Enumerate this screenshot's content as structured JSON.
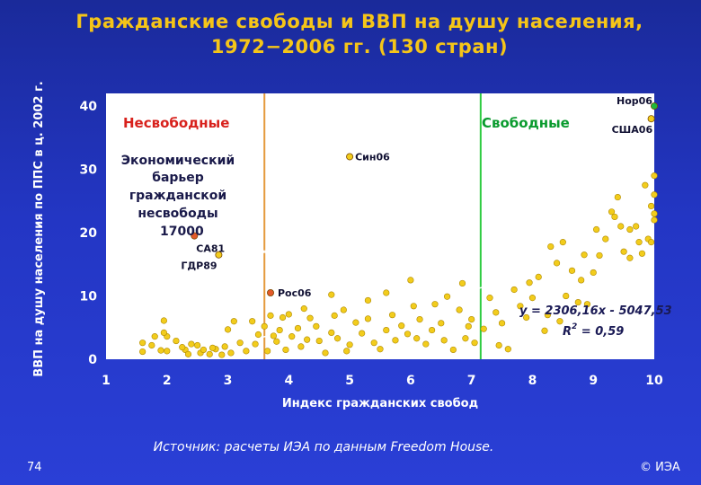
{
  "title_line1": "Гражданские свободы и ВВП на душу населения,",
  "title_line2": "1972−2006 гг. (130 стран)",
  "source": "Источник: расчеты ИЭА по данным Freedom House.",
  "slide_number": "74",
  "copyright": "© ИЭА",
  "colors": {
    "background": "#2336c4",
    "plot_background": "#ffffff",
    "point": "#f2cc1c",
    "unfree_line": "#e59a3c",
    "free_line": "#2ecc40",
    "title": "#f5c518"
  },
  "chart_data": {
    "type": "scatter",
    "title": "Гражданские свободы и ВВП на душу населения, 1972−2006 гг. (130 стран)",
    "xlabel": "Индекс гражданских свобод",
    "ylabel": "ВВП на душу населения по ППС в ц. 2002 г.",
    "xlim": [
      1,
      10
    ],
    "ylim": [
      0,
      42
    ],
    "x_ticks": [
      "1",
      "2",
      "3",
      "4",
      "5",
      "6",
      "7",
      "8",
      "9",
      "10"
    ],
    "y_ticks": [
      "0",
      "10",
      "20",
      "30",
      "40"
    ],
    "grid": false,
    "regions": {
      "unfree": "Несвободные",
      "free": "Свободные"
    },
    "barrier_text": [
      "Экономический",
      "барьер",
      "гражданской",
      "несвободы",
      "17000"
    ],
    "barrier_level": 17000,
    "barrier_label": "17000",
    "vertical_lines": {
      "unfree_x": 3.6,
      "free_x": 7.15
    },
    "trendline": {
      "equation": "y = 2306,16x - 5047,53",
      "r2_label": "R",
      "r2_sup": "2",
      "r2_value": " = 0,59",
      "x": [
        2.1,
        10
      ],
      "y": [
        0.3,
        17.5
      ]
    },
    "labeled_points": [
      {
        "label": "Нор06",
        "x": 10.0,
        "y": 40.0
      },
      {
        "label": "США06",
        "x": 9.95,
        "y": 38.0
      },
      {
        "label": "Син06",
        "x": 5.0,
        "y": 32.0
      },
      {
        "label": "СА81",
        "x": 2.45,
        "y": 19.5
      },
      {
        "label": "ГДР89",
        "x": 2.85,
        "y": 16.5
      },
      {
        "label": "Рос06",
        "x": 3.7,
        "y": 10.5
      }
    ],
    "points": [
      [
        1.6,
        1.2
      ],
      [
        1.6,
        2.6
      ],
      [
        1.8,
        3.6
      ],
      [
        1.9,
        1.4
      ],
      [
        1.95,
        6.1
      ],
      [
        2.0,
        1.3
      ],
      [
        2.0,
        3.6
      ],
      [
        2.15,
        2.9
      ],
      [
        2.3,
        1.5
      ],
      [
        2.35,
        0.8
      ],
      [
        2.4,
        2.4
      ],
      [
        2.5,
        2.2
      ],
      [
        2.55,
        1.0
      ],
      [
        2.7,
        0.8
      ],
      [
        2.8,
        1.6
      ],
      [
        2.9,
        0.7
      ],
      [
        2.95,
        2.0
      ],
      [
        3.0,
        4.7
      ],
      [
        3.1,
        6.0
      ],
      [
        3.2,
        2.6
      ],
      [
        3.3,
        1.3
      ],
      [
        3.45,
        2.4
      ],
      [
        3.5,
        3.9
      ],
      [
        3.6,
        5.2
      ],
      [
        3.65,
        1.3
      ],
      [
        3.7,
        6.9
      ],
      [
        3.75,
        3.7
      ],
      [
        3.8,
        2.8
      ],
      [
        3.85,
        4.6
      ],
      [
        3.9,
        6.6
      ],
      [
        3.95,
        1.5
      ],
      [
        4.0,
        7.1
      ],
      [
        4.05,
        3.6
      ],
      [
        4.15,
        4.9
      ],
      [
        4.2,
        2.0
      ],
      [
        4.3,
        3.1
      ],
      [
        4.35,
        6.5
      ],
      [
        4.45,
        5.2
      ],
      [
        4.5,
        2.9
      ],
      [
        4.6,
        1.0
      ],
      [
        4.7,
        4.2
      ],
      [
        4.75,
        6.9
      ],
      [
        4.8,
        3.3
      ],
      [
        4.95,
        1.3
      ],
      [
        5.0,
        2.3
      ],
      [
        5.1,
        5.8
      ],
      [
        5.2,
        4.1
      ],
      [
        5.3,
        6.4
      ],
      [
        5.4,
        2.6
      ],
      [
        5.5,
        1.6
      ],
      [
        5.6,
        4.6
      ],
      [
        5.7,
        7.0
      ],
      [
        5.75,
        3.0
      ],
      [
        5.85,
        5.3
      ],
      [
        5.95,
        4.0
      ],
      [
        6.05,
        8.4
      ],
      [
        6.1,
        3.3
      ],
      [
        6.15,
        6.3
      ],
      [
        6.25,
        2.4
      ],
      [
        6.35,
        4.6
      ],
      [
        6.4,
        8.7
      ],
      [
        6.5,
        5.7
      ],
      [
        6.55,
        3.0
      ],
      [
        6.6,
        9.9
      ],
      [
        6.7,
        1.5
      ],
      [
        6.8,
        7.8
      ],
      [
        6.9,
        3.3
      ],
      [
        6.95,
        5.2
      ],
      [
        7.0,
        6.3
      ],
      [
        7.05,
        2.6
      ],
      [
        7.2,
        4.8
      ],
      [
        7.3,
        9.7
      ],
      [
        7.4,
        7.4
      ],
      [
        7.5,
        5.7
      ],
      [
        7.6,
        1.6
      ],
      [
        7.7,
        11.0
      ],
      [
        7.8,
        8.4
      ],
      [
        7.9,
        6.6
      ],
      [
        8.0,
        9.7
      ],
      [
        8.1,
        13.0
      ],
      [
        8.2,
        4.5
      ],
      [
        8.25,
        7.0
      ],
      [
        8.4,
        15.2
      ],
      [
        8.5,
        18.5
      ],
      [
        8.55,
        10.0
      ],
      [
        8.65,
        14.0
      ],
      [
        8.75,
        9.0
      ],
      [
        8.8,
        12.5
      ],
      [
        8.85,
        16.5
      ],
      [
        8.9,
        8.7
      ],
      [
        9.0,
        13.7
      ],
      [
        9.05,
        20.5
      ],
      [
        9.1,
        16.4
      ],
      [
        9.2,
        19.0
      ],
      [
        9.3,
        23.3
      ],
      [
        9.35,
        22.5
      ],
      [
        9.4,
        25.6
      ],
      [
        9.5,
        17.0
      ],
      [
        9.6,
        20.5
      ],
      [
        9.7,
        21.0
      ],
      [
        9.75,
        18.5
      ],
      [
        9.8,
        16.7
      ],
      [
        9.85,
        27.5
      ],
      [
        9.9,
        19.0
      ],
      [
        9.95,
        24.2
      ],
      [
        10.0,
        23.0
      ],
      [
        10.0,
        29.0
      ],
      [
        10.0,
        22.0
      ],
      [
        9.95,
        18.5
      ],
      [
        10.0,
        26.0
      ],
      [
        9.6,
        16.0
      ],
      [
        9.45,
        21.0
      ],
      [
        8.3,
        17.8
      ],
      [
        6.0,
        12.5
      ],
      [
        5.6,
        10.5
      ],
      [
        5.3,
        9.3
      ],
      [
        4.9,
        7.8
      ],
      [
        4.7,
        10.2
      ],
      [
        4.25,
        8.0
      ],
      [
        3.4,
        6.0
      ],
      [
        3.05,
        1.0
      ],
      [
        2.75,
        1.8
      ],
      [
        2.25,
        1.9
      ],
      [
        2.6,
        1.5
      ],
      [
        1.95,
        4.2
      ],
      [
        1.75,
        2.2
      ],
      [
        7.45,
        2.2
      ],
      [
        6.85,
        12.0
      ],
      [
        7.95,
        12.1
      ],
      [
        8.45,
        6.0
      ]
    ]
  }
}
